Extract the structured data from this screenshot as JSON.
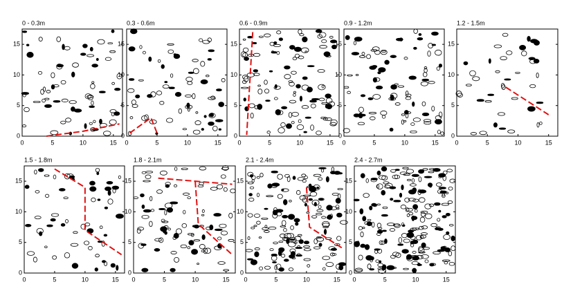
{
  "chart_data": [
    {
      "type": "contour",
      "title": "0 - 0.3m",
      "xlim": [
        0,
        16.5
      ],
      "ylim": [
        0,
        17.5
      ],
      "xticks": [
        0,
        5,
        10,
        15
      ],
      "yticks": [
        0,
        5,
        10,
        15
      ]
    },
    {
      "type": "contour",
      "title": "0.3 - 0.6m",
      "xlim": [
        0,
        16.5
      ],
      "ylim": [
        0,
        17.5
      ],
      "xticks": [
        0,
        5,
        10,
        15
      ],
      "yticks": [
        0,
        5,
        10,
        15
      ]
    },
    {
      "type": "contour",
      "title": "0.6 - 0.9m",
      "xlim": [
        0,
        16.5
      ],
      "ylim": [
        0,
        17.5
      ],
      "xticks": [
        0,
        5,
        10,
        15
      ],
      "yticks": [
        0,
        5,
        10,
        15
      ]
    },
    {
      "type": "contour",
      "title": "0.9 - 1.2m",
      "xlim": [
        0,
        16.5
      ],
      "ylim": [
        0,
        17.5
      ],
      "xticks": [
        0,
        5,
        10,
        15
      ],
      "yticks": [
        0,
        5,
        10,
        15
      ]
    },
    {
      "type": "contour",
      "title": "1.2 - 1.5m",
      "xlim": [
        0,
        16.5
      ],
      "ylim": [
        0,
        17.5
      ],
      "xticks": [
        0,
        5,
        10,
        15
      ],
      "yticks": [
        0,
        5,
        10,
        15
      ]
    },
    {
      "type": "contour",
      "title": "1.5 - 1.8m",
      "xlim": [
        0,
        16.5
      ],
      "ylim": [
        0,
        17.5
      ],
      "xticks": [
        0,
        5,
        10,
        15
      ],
      "yticks": [
        0,
        5,
        10,
        15
      ]
    },
    {
      "type": "contour",
      "title": "1.8 - 2.1m",
      "xlim": [
        0,
        16.5
      ],
      "ylim": [
        0,
        17.5
      ],
      "xticks": [
        0,
        5,
        10,
        15
      ],
      "yticks": [
        0,
        5,
        10,
        15
      ]
    },
    {
      "type": "contour",
      "title": "2.1 - 2.4m",
      "xlim": [
        0,
        16.5
      ],
      "ylim": [
        0,
        17.5
      ],
      "xticks": [
        0,
        5,
        10,
        15
      ],
      "yticks": [
        0,
        5,
        10,
        15
      ]
    },
    {
      "type": "contour",
      "title": "2.4 - 2.7m",
      "xlim": [
        0,
        16.5
      ],
      "ylim": [
        0,
        17.5
      ],
      "xticks": [
        0,
        5,
        10,
        15
      ],
      "yticks": [
        0,
        5,
        10,
        15
      ]
    }
  ]
}
